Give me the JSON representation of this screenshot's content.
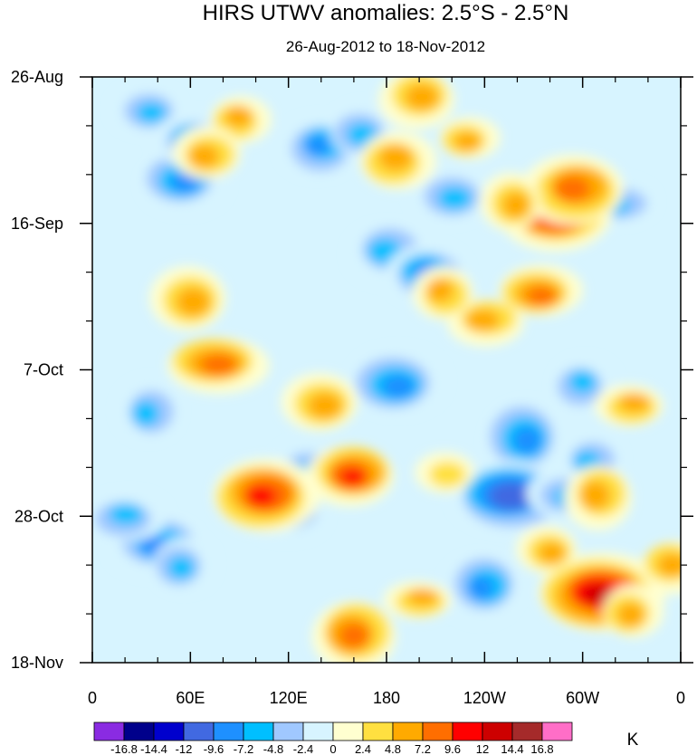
{
  "chart_data": {
    "type": "heatmap",
    "title": "HIRS UTWV anomalies: 2.5°S - 2.5°N",
    "subtitle": "26-Aug-2012 to 18-Nov-2012",
    "xlabel": "",
    "ylabel": "",
    "x_ticks": [
      "0",
      "60E",
      "120E",
      "180",
      "120W",
      "60W",
      "0"
    ],
    "y_ticks": [
      "26-Aug",
      "16-Sep",
      "7-Oct",
      "28-Oct",
      "18-Nov"
    ],
    "xlim": [
      0,
      360
    ],
    "ylim_days": [
      0,
      84
    ],
    "colorbar": {
      "unit": "K",
      "levels": [
        -16.8,
        -14.4,
        -12,
        -9.6,
        -7.2,
        -4.8,
        -2.4,
        0,
        2.4,
        4.8,
        7.2,
        9.6,
        12,
        14.4,
        16.8
      ],
      "labels": [
        "-16.8",
        "-14.4",
        "-12",
        "-9.6",
        "-7.2",
        "-4.8",
        "-2.4",
        "0",
        "2.4",
        "4.8",
        "7.2",
        "9.6",
        "12",
        "14.4",
        "16.8"
      ],
      "colors": [
        "#8a2be2",
        "#00008b",
        "#0000cd",
        "#4169e1",
        "#1e90ff",
        "#00bfff",
        "#a0c8ff",
        "#d7f4ff",
        "#ffffd0",
        "#ffe040",
        "#ffaa00",
        "#ff6e00",
        "#ff0000",
        "#cd0000",
        "#a52a2a",
        "#ff6ec7"
      ]
    },
    "features": [
      {
        "lon": 35,
        "day": 5,
        "value": -7
      },
      {
        "lon": 55,
        "day": 15,
        "value": -8
      },
      {
        "lon": 60,
        "day": 9,
        "value": -6
      },
      {
        "lon": 35,
        "day": 48,
        "value": -6
      },
      {
        "lon": 40,
        "day": 67,
        "value": -9
      },
      {
        "lon": 20,
        "day": 63,
        "value": -6
      },
      {
        "lon": 55,
        "day": 70,
        "value": -6
      },
      {
        "lon": 130,
        "day": 57,
        "value": -6
      },
      {
        "lon": 120,
        "day": 63,
        "value": -6
      },
      {
        "lon": 140,
        "day": 10,
        "value": -8
      },
      {
        "lon": 165,
        "day": 8,
        "value": -6
      },
      {
        "lon": 180,
        "day": 25,
        "value": -6
      },
      {
        "lon": 205,
        "day": 28,
        "value": -9
      },
      {
        "lon": 220,
        "day": 17,
        "value": -7
      },
      {
        "lon": 185,
        "day": 44,
        "value": -8
      },
      {
        "lon": 265,
        "day": 52,
        "value": -9
      },
      {
        "lon": 255,
        "day": 60,
        "value": -12
      },
      {
        "lon": 290,
        "day": 60,
        "value": -6
      },
      {
        "lon": 240,
        "day": 73,
        "value": -8
      },
      {
        "lon": 300,
        "day": 44,
        "value": -5
      },
      {
        "lon": 320,
        "day": 18,
        "value": -6
      },
      {
        "lon": 305,
        "day": 55,
        "value": -6
      },
      {
        "lon": 200,
        "day": 3,
        "value": 7
      },
      {
        "lon": 185,
        "day": 12,
        "value": 6
      },
      {
        "lon": 230,
        "day": 9,
        "value": 6
      },
      {
        "lon": 283,
        "day": 19,
        "value": 12
      },
      {
        "lon": 295,
        "day": 16,
        "value": 9
      },
      {
        "lon": 258,
        "day": 18,
        "value": 6
      },
      {
        "lon": 273,
        "day": 31,
        "value": 8
      },
      {
        "lon": 240,
        "day": 35,
        "value": 6
      },
      {
        "lon": 215,
        "day": 31,
        "value": 6
      },
      {
        "lon": 60,
        "day": 32,
        "value": 7
      },
      {
        "lon": 75,
        "day": 41,
        "value": 9
      },
      {
        "lon": 90,
        "day": 6,
        "value": 6
      },
      {
        "lon": 70,
        "day": 11,
        "value": 6
      },
      {
        "lon": 140,
        "day": 47,
        "value": 6
      },
      {
        "lon": 160,
        "day": 57,
        "value": 10
      },
      {
        "lon": 105,
        "day": 60,
        "value": 11
      },
      {
        "lon": 215,
        "day": 57,
        "value": 4
      },
      {
        "lon": 310,
        "day": 60,
        "value": 7
      },
      {
        "lon": 330,
        "day": 47,
        "value": 6
      },
      {
        "lon": 310,
        "day": 74,
        "value": 12
      },
      {
        "lon": 330,
        "day": 77,
        "value": 6
      },
      {
        "lon": 160,
        "day": 80,
        "value": 8
      },
      {
        "lon": 200,
        "day": 75,
        "value": 5
      },
      {
        "lon": 280,
        "day": 68,
        "value": 6
      },
      {
        "lon": 355,
        "day": 70,
        "value": 6
      }
    ]
  }
}
